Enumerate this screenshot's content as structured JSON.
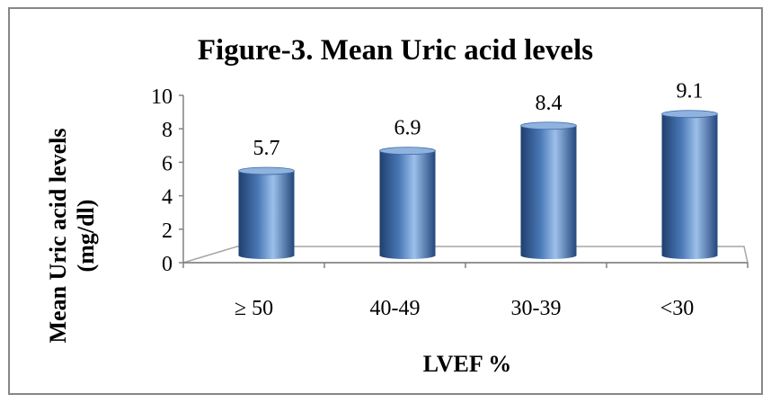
{
  "chart_data": {
    "type": "bar",
    "title": "Figure-3. Mean Uric acid levels",
    "xlabel": "LVEF %",
    "ylabel_line1": "Mean Uric acid levels",
    "ylabel_line2": "(mg/dl)",
    "categories": [
      "≥ 50",
      "40-49",
      "30-39",
      "<30"
    ],
    "values": [
      5.7,
      6.9,
      8.4,
      9.1
    ],
    "value_labels": [
      "5.7",
      "6.9",
      "8.4",
      "9.1"
    ],
    "ylim": [
      0,
      10
    ],
    "yticks": [
      0,
      2,
      4,
      6,
      8,
      10
    ],
    "grid": false,
    "legend": "none",
    "bar_style": "3d-cylinder",
    "colors": {
      "bar_dark": "#1f3f6e",
      "bar_mid": "#4a78b6",
      "bar_light": "#9cc0ea",
      "bar_top": "#8fb3de",
      "floor_edge": "#a6a6a6",
      "axis": "#808080",
      "border": "#878787",
      "text": "#000000"
    }
  }
}
